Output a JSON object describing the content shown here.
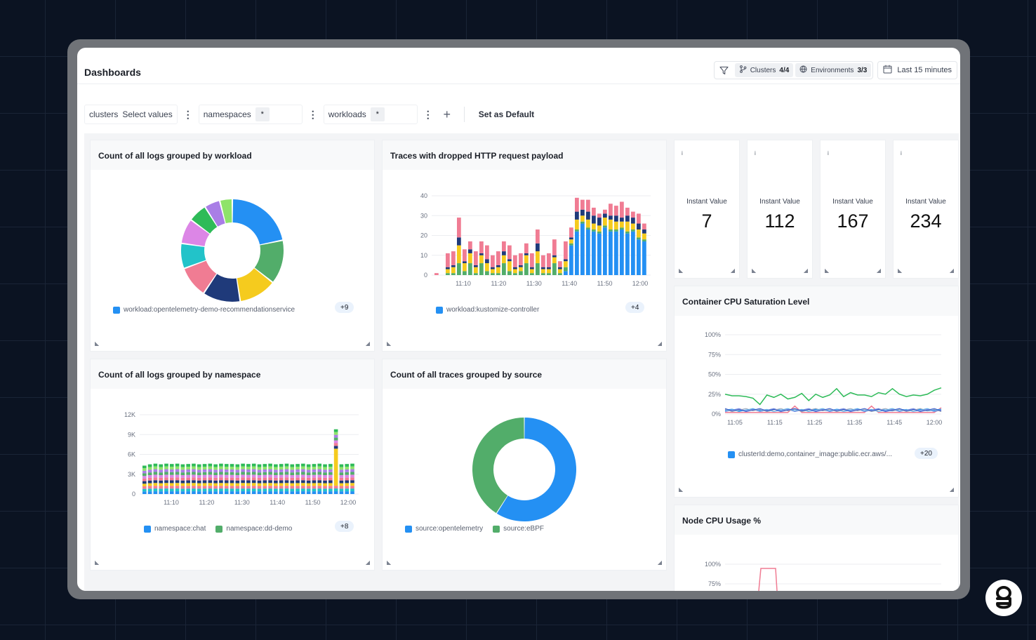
{
  "header": {
    "title": "Dashboards",
    "clusters_label": "Clusters",
    "clusters_count": "4/4",
    "environments_label": "Environments",
    "environments_count": "3/3",
    "time_range": "Last 15 minutes"
  },
  "filters": {
    "clusters_key": "clusters",
    "clusters_value": "Select values",
    "namespaces_key": "namespaces",
    "namespaces_value": "*",
    "workloads_key": "workloads",
    "workloads_value": "*",
    "set_default": "Set as Default"
  },
  "panels": {
    "logs_by_workload": {
      "title": "Count of all logs grouped by workload",
      "legend": "workload:opentelemetry-demo-recommendationservice",
      "more": "+9"
    },
    "traces_dropped": {
      "title": "Traces with dropped HTTP request payload",
      "legend": "workload:kustomize-controller",
      "more": "+4"
    },
    "logs_by_namespace": {
      "title": "Count of all logs grouped by namespace",
      "legend1": "namespace:chat",
      "legend2": "namespace:dd-demo",
      "more": "+8"
    },
    "traces_by_source": {
      "title": "Count of all traces grouped by source",
      "legend1": "source:opentelemetry",
      "legend2": "source:eBPF"
    },
    "cpu_saturation": {
      "title": "Container CPU Saturation Level",
      "legend": "clusterId:demo,container_image:public.ecr.aws/...",
      "more": "+20"
    },
    "node_cpu": {
      "title": "Node CPU Usage %"
    }
  },
  "stats": [
    {
      "info": "i",
      "label": "Instant Value",
      "value": "7"
    },
    {
      "info": "i",
      "label": "Instant Value",
      "value": "112"
    },
    {
      "info": "i",
      "label": "Instant Value",
      "value": "167"
    },
    {
      "info": "i",
      "label": "Instant Value",
      "value": "234"
    }
  ],
  "colors": {
    "blue": "#2490f3",
    "green": "#52ad6a",
    "yellow": "#f5cb1e",
    "navy": "#1f3a7a",
    "pink": "#f07c93",
    "teal": "#22c3c9",
    "violet": "#dc86e6",
    "emerald": "#2ebb58",
    "purple": "#a97ee6",
    "lime": "#8fe36a"
  },
  "chart_data": [
    {
      "id": "logs_by_workload",
      "type": "pie",
      "donut": true,
      "values": [
        22,
        14,
        12,
        12,
        10,
        8,
        8,
        6,
        5,
        4
      ]
    },
    {
      "id": "traces_dropped",
      "type": "bar",
      "stacked": true,
      "x_ticks": [
        "11:10",
        "11:20",
        "11:30",
        "11:40",
        "11:50",
        "12:00"
      ],
      "y_ticks": [
        "0",
        "10",
        "20",
        "30",
        "40"
      ],
      "ylim": [
        0,
        40
      ],
      "series": [
        {
          "values": [
            0,
            0,
            0,
            0,
            0,
            0,
            0,
            0,
            0,
            0,
            0,
            0,
            0,
            0,
            0,
            0,
            0,
            0,
            0,
            0,
            0,
            0,
            0,
            2,
            15,
            22,
            26,
            23,
            22,
            21,
            24,
            22,
            22,
            23,
            21,
            22,
            18,
            17
          ]
        },
        {
          "values": [
            0,
            0,
            1,
            1,
            6,
            2,
            6,
            1,
            6,
            2,
            1,
            1,
            6,
            2,
            1,
            2,
            6,
            1,
            6,
            1,
            1,
            6,
            1,
            2,
            1,
            1,
            1,
            1,
            1,
            1,
            1,
            1,
            1,
            1,
            1,
            1,
            1,
            1
          ]
        },
        {
          "values": [
            0,
            0,
            2,
            3,
            9,
            4,
            5,
            3,
            4,
            4,
            2,
            3,
            4,
            5,
            2,
            2,
            4,
            2,
            6,
            2,
            2,
            3,
            2,
            3,
            2,
            5,
            3,
            4,
            3,
            3,
            4,
            5,
            4,
            3,
            5,
            3,
            4,
            3
          ]
        },
        {
          "values": [
            0,
            0,
            1,
            1,
            4,
            1,
            2,
            1,
            1,
            2,
            1,
            1,
            2,
            1,
            1,
            1,
            1,
            1,
            4,
            1,
            1,
            1,
            1,
            1,
            1,
            4,
            3,
            4,
            4,
            4,
            2,
            2,
            3,
            2,
            3,
            3,
            3,
            2
          ]
        },
        {
          "values": [
            1,
            0,
            7,
            7,
            10,
            6,
            4,
            7,
            6,
            7,
            6,
            7,
            5,
            7,
            6,
            6,
            5,
            7,
            7,
            6,
            7,
            8,
            3,
            9,
            5,
            7,
            5,
            6,
            4,
            2,
            2,
            6,
            5,
            8,
            4,
            3,
            5,
            3
          ]
        }
      ]
    },
    {
      "id": "logs_by_namespace",
      "type": "bar",
      "stacked": true,
      "x_ticks": [
        "11:10",
        "11:20",
        "11:30",
        "11:40",
        "11:50",
        "12:00"
      ],
      "y_ticks": [
        "0",
        "3K",
        "6K",
        "9K",
        "12K"
      ],
      "ylim": [
        0,
        12000
      ],
      "total_levels": [
        4300,
        4500,
        4600,
        4500,
        4600,
        4550,
        4600,
        4500,
        4550,
        4600,
        4500,
        4550,
        4600,
        4500,
        4600,
        4550,
        4550,
        4500,
        4600,
        4550,
        4600,
        4500,
        4550,
        4600,
        4500,
        4550,
        4600,
        4500,
        4550,
        4600,
        4500,
        4550,
        4600,
        4500,
        4550,
        9800,
        4500,
        4550,
        4600
      ]
    },
    {
      "id": "traces_by_source",
      "type": "pie",
      "donut": true,
      "values": [
        59,
        41
      ]
    },
    {
      "id": "cpu_saturation",
      "type": "line",
      "x_ticks": [
        "11:05",
        "11:15",
        "11:25",
        "11:35",
        "11:45",
        "12:00"
      ],
      "y_ticks": [
        "0%",
        "25%",
        "50%",
        "75%",
        "100%"
      ],
      "ylim": [
        0,
        100
      ],
      "series": [
        {
          "values": [
            25,
            23,
            23,
            22,
            20,
            12,
            24,
            21,
            25,
            19,
            21,
            26,
            17,
            25,
            21,
            24,
            32,
            22,
            27,
            24,
            24,
            22,
            27,
            25,
            32,
            25,
            22,
            24,
            23,
            25,
            30,
            33
          ]
        },
        {
          "values": [
            2,
            2,
            2,
            2,
            2,
            2,
            2,
            2,
            2,
            2,
            10,
            2,
            2,
            2,
            2,
            2,
            2,
            2,
            2,
            2,
            2,
            10,
            2,
            2,
            2,
            2,
            2,
            2,
            2,
            2,
            2,
            8
          ]
        },
        {
          "values": [
            5,
            6,
            4,
            5,
            6,
            5,
            4,
            6,
            5,
            5,
            6,
            4,
            5,
            6,
            5,
            4,
            6,
            5,
            5,
            6,
            4,
            5,
            6,
            5,
            4,
            6,
            5,
            5,
            6,
            4,
            5,
            6
          ]
        }
      ]
    },
    {
      "id": "node_cpu",
      "type": "line",
      "y_ticks": [
        "75%",
        "100%"
      ]
    }
  ]
}
